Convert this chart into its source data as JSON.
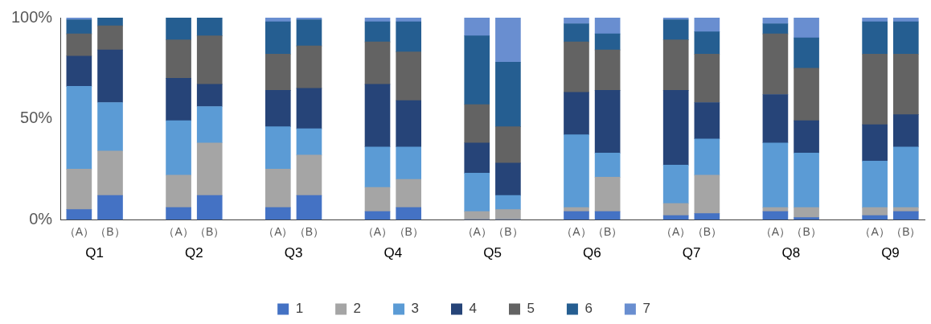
{
  "chart_data": {
    "type": "bar",
    "stacked": true,
    "categories": [
      "（A）",
      "（B）",
      "（A）",
      "（B）",
      "（A）",
      "（B）",
      "（A）",
      "（B）",
      "（A）",
      "（B）",
      "（A）",
      "（B）",
      "（A）",
      "（B）",
      "（A）",
      "（B）",
      "（A）",
      "（B）"
    ],
    "annotations": [
      "Q1",
      "Q2",
      "Q3",
      "Q4",
      "Q5",
      "Q6",
      "Q7",
      "Q8",
      "Q9"
    ],
    "series": [
      {
        "name": "1",
        "color": "#4472c4",
        "values": [
          5,
          12,
          6,
          12,
          6,
          12,
          4,
          6,
          0,
          0,
          4,
          4,
          2,
          3,
          4,
          1,
          2,
          4
        ]
      },
      {
        "name": "2",
        "color": "#a5a5a5",
        "values": [
          20,
          22,
          16,
          26,
          19,
          20,
          12,
          14,
          4,
          5,
          2,
          17,
          6,
          19,
          2,
          5,
          4,
          2
        ]
      },
      {
        "name": "3",
        "color": "#5b9bd5",
        "values": [
          41,
          24,
          27,
          18,
          21,
          13,
          20,
          16,
          19,
          7,
          36,
          12,
          19,
          18,
          32,
          27,
          23,
          30
        ]
      },
      {
        "name": "4",
        "color": "#264478",
        "values": [
          15,
          26,
          21,
          11,
          18,
          20,
          31,
          23,
          15,
          16,
          21,
          31,
          37,
          18,
          24,
          16,
          18,
          16
        ]
      },
      {
        "name": "5",
        "color": "#636363",
        "values": [
          11,
          12,
          19,
          24,
          18,
          21,
          21,
          24,
          19,
          18,
          25,
          20,
          25,
          24,
          30,
          26,
          35,
          30
        ]
      },
      {
        "name": "6",
        "color": "#255e91",
        "values": [
          7,
          4,
          11,
          9,
          16,
          13,
          10,
          15,
          34,
          32,
          9,
          8,
          10,
          11,
          5,
          15,
          16,
          16
        ]
      },
      {
        "name": "7",
        "color": "#698ed0",
        "values": [
          1,
          0,
          0,
          0,
          2,
          1,
          2,
          2,
          9,
          22,
          3,
          8,
          1,
          7,
          3,
          10,
          2,
          2
        ]
      }
    ],
    "ylim": [
      0,
      100
    ],
    "yticks": [
      {
        "value": 0,
        "label": "0%"
      },
      {
        "value": 50,
        "label": "50%"
      },
      {
        "value": 100,
        "label": "100%"
      }
    ],
    "grid": false,
    "legend": "bottom"
  }
}
